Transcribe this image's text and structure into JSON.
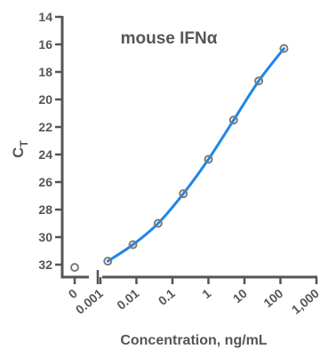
{
  "chart_data": {
    "type": "scatter",
    "title": "mouse IFNα",
    "xlabel": "Concentration, ng/mL",
    "ylabel": "C",
    "ylabel_subscript": "T",
    "x_scale": "log",
    "x_tick_labels": [
      "0",
      "0.001",
      "0.01",
      "0.1",
      "1",
      "10",
      "100",
      "1,000"
    ],
    "x_tick_values": [
      0,
      0.001,
      0.01,
      0.1,
      1,
      10,
      100,
      1000
    ],
    "y_ticks": [
      14,
      16,
      18,
      20,
      22,
      24,
      26,
      28,
      30,
      32
    ],
    "y_reversed": true,
    "xlim": [
      0.001,
      1000
    ],
    "ylim": [
      14,
      33
    ],
    "grid": false,
    "axis_break": true,
    "colors": {
      "curve": "#1f86e8",
      "points": "#7a7a7a",
      "axis": "#555555",
      "text": "#555555"
    },
    "series": [
      {
        "points": [
          {
            "x": 0,
            "y": 32.2
          },
          {
            "x": 0.0016,
            "y": 31.75
          },
          {
            "x": 0.008,
            "y": 30.55
          },
          {
            "x": 0.04,
            "y": 29.0
          },
          {
            "x": 0.2,
            "y": 26.85
          },
          {
            "x": 1,
            "y": 24.35
          },
          {
            "x": 5,
            "y": 21.5
          },
          {
            "x": 25,
            "y": 18.65
          },
          {
            "x": 125,
            "y": 16.3
          }
        ]
      }
    ]
  }
}
